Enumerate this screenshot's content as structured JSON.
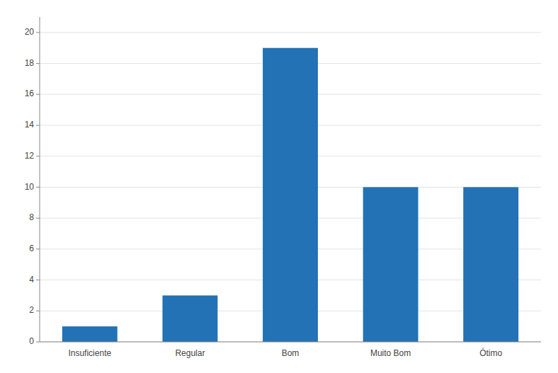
{
  "chart_data": {
    "type": "bar",
    "categories": [
      "Insuficiente",
      "Regular",
      "Bom",
      "Muito Bom",
      "Ótimo"
    ],
    "values": [
      1,
      3,
      19,
      10,
      10
    ],
    "color": "#2272B5",
    "ylim": [
      0,
      21
    ],
    "yticks": [
      0,
      2,
      4,
      6,
      8,
      10,
      12,
      14,
      16,
      18,
      20
    ],
    "grid": true
  }
}
